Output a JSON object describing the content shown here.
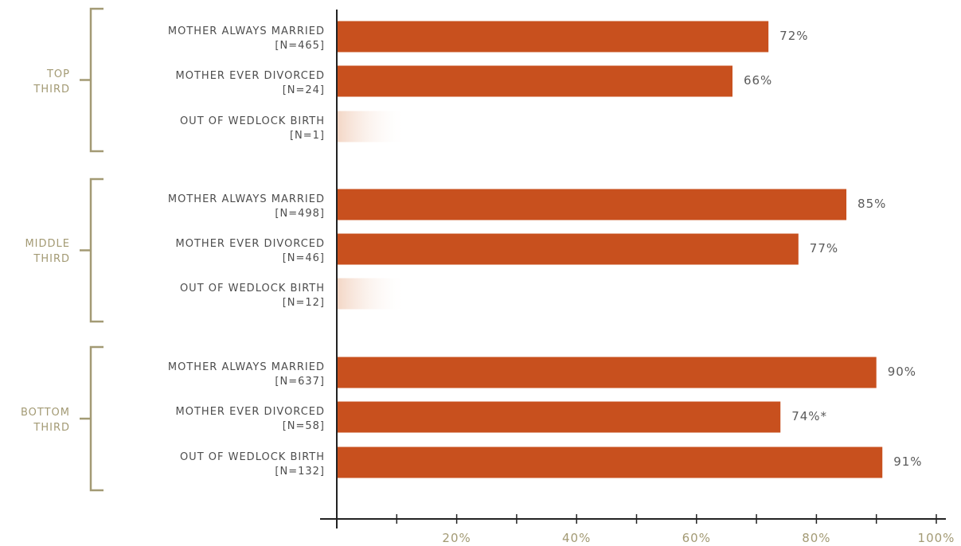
{
  "chart_data": {
    "type": "bar",
    "orientation": "horizontal",
    "colors": {
      "bar": "#c8501e",
      "faint_bar": "#f6e0d2",
      "group_bracket": "#a39a74",
      "axis": "#222222"
    },
    "groups": [
      {
        "name_lines": [
          "TOP",
          "THIRD"
        ],
        "bars": [
          {
            "category": "MOTHER ALWAYS MARRIED",
            "n": "[N=465]",
            "value": 72,
            "label": "72%"
          },
          {
            "category": "MOTHER EVER DIVORCED",
            "n": "[N=24]",
            "value": 66,
            "label": "66%"
          },
          {
            "category": "OUT OF WEDLOCK BIRTH",
            "n": "[N=1]",
            "value": null,
            "label": ""
          }
        ]
      },
      {
        "name_lines": [
          "MIDDLE",
          "THIRD"
        ],
        "bars": [
          {
            "category": "MOTHER ALWAYS MARRIED",
            "n": "[N=498]",
            "value": 85,
            "label": "85%"
          },
          {
            "category": "MOTHER EVER DIVORCED",
            "n": "[N=46]",
            "value": 77,
            "label": "77%"
          },
          {
            "category": "OUT OF WEDLOCK BIRTH",
            "n": "[N=12]",
            "value": null,
            "label": ""
          }
        ]
      },
      {
        "name_lines": [
          "BOTTOM",
          "THIRD"
        ],
        "bars": [
          {
            "category": "MOTHER ALWAYS MARRIED",
            "n": "[N=637]",
            "value": 90,
            "label": "90%"
          },
          {
            "category": "MOTHER EVER DIVORCED",
            "n": "[N=58]",
            "value": 74,
            "label": "74%*"
          },
          {
            "category": "OUT OF WEDLOCK BIRTH",
            "n": "[N=132]",
            "value": 91,
            "label": "91%"
          }
        ]
      }
    ],
    "x_axis": {
      "range": [
        0,
        100
      ],
      "ticks": [
        0,
        10,
        20,
        30,
        40,
        50,
        60,
        70,
        80,
        90,
        100
      ],
      "tick_labels": [
        "",
        "",
        "20%",
        "",
        "40%",
        "",
        "60%",
        "",
        "80%",
        "",
        "100%"
      ]
    },
    "grid": false,
    "legend": "none"
  }
}
